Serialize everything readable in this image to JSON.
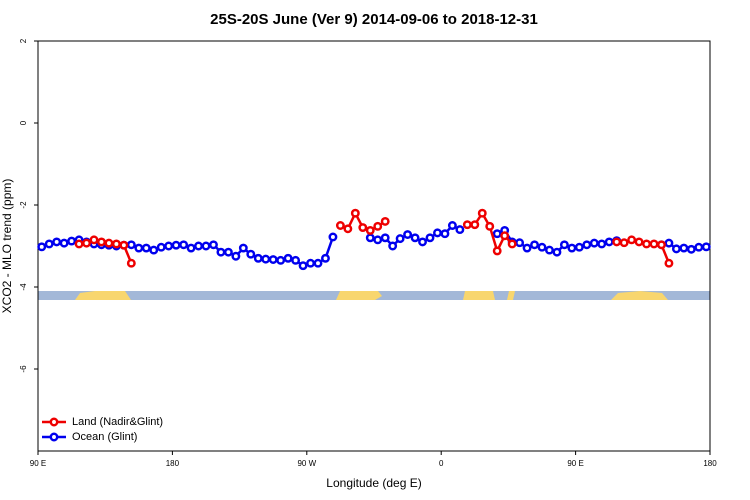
{
  "chart_data": {
    "type": "line",
    "title": "25S-20S June (Ver 9)   2014-09-06 to 2018-12-31",
    "xlabel": "Longitude (deg E)",
    "ylabel": "XCO2 - MLO trend (ppm)",
    "xlim": [
      90,
      540
    ],
    "xticks": [
      {
        "value": 90,
        "label": "90 E"
      },
      180,
      {
        "value": 270,
        "label": "90 W"
      },
      {
        "value": 360,
        "label": "0"
      },
      {
        "value": 450,
        "label": "90 E"
      },
      {
        "value": 540,
        "label": "180"
      }
    ],
    "ylim": [
      -8,
      2
    ],
    "yticks": [
      2,
      0,
      -2,
      -4,
      -6
    ],
    "legend": "bottom-left",
    "x": [
      92.5,
      97.5,
      102.5,
      107.5,
      112.5,
      117.5,
      122.5,
      127.5,
      132.5,
      137.5,
      142.5,
      147.5,
      152.5,
      157.5,
      162.5,
      167.5,
      172.5,
      177.5,
      182.5,
      187.5,
      192.5,
      197.5,
      202.5,
      207.5,
      212.5,
      217.5,
      222.5,
      227.5,
      232.5,
      237.5,
      242.5,
      247.5,
      252.5,
      257.5,
      262.5,
      267.5,
      272.5,
      277.5,
      282.5,
      287.5,
      292.5,
      297.5,
      302.5,
      307.5,
      312.5,
      317.5,
      322.5,
      327.5,
      332.5,
      337.5,
      342.5,
      347.5,
      352.5,
      357.5,
      362.5,
      367.5,
      372.5,
      377.5,
      382.5,
      387.5,
      392.5,
      397.5,
      402.5,
      407.5,
      412.5,
      417.5,
      422.5,
      427.5,
      432.5,
      437.5,
      442.5,
      447.5,
      452.5,
      457.5,
      462.5,
      467.5,
      472.5,
      477.5,
      482.5,
      487.5,
      492.5,
      497.5,
      502.5,
      507.5,
      512.5,
      517.5,
      522.5,
      527.5,
      532.5,
      537.5
    ],
    "series": [
      {
        "name": "Ocean (Glint)",
        "color": "#0000ee",
        "values": [
          -3.02,
          -2.95,
          -2.9,
          -2.93,
          -2.88,
          -2.85,
          -2.9,
          -2.95,
          -2.97,
          -2.98,
          -3.0,
          -2.98,
          -2.97,
          -3.05,
          -3.05,
          -3.1,
          -3.03,
          -3.0,
          -2.98,
          -2.97,
          -3.05,
          -3.0,
          -3.0,
          -2.97,
          -3.15,
          -3.15,
          -3.25,
          -3.05,
          -3.2,
          -3.3,
          -3.32,
          -3.33,
          -3.35,
          -3.3,
          -3.35,
          -3.48,
          -3.42,
          -3.42,
          -3.3,
          -2.78,
          null,
          null,
          null,
          null,
          -2.8,
          -2.85,
          -2.8,
          -3.0,
          -2.82,
          -2.72,
          -2.8,
          -2.9,
          -2.8,
          -2.68,
          -2.7,
          -2.5,
          -2.6,
          null,
          null,
          null,
          null,
          -2.7,
          -2.62,
          -2.9,
          -2.92,
          -3.05,
          -2.97,
          -3.03,
          -3.1,
          -3.15,
          -2.97,
          -3.05,
          -3.03,
          -2.97,
          -2.93,
          -2.95,
          -2.9,
          -2.87,
          null,
          null,
          null,
          null,
          null,
          -2.97,
          -2.93,
          -3.07,
          -3.05,
          -3.08,
          -3.03,
          -3.02
        ]
      },
      {
        "name": "Land (Nadir&Glint)",
        "color": "#ee0000",
        "values": [
          null,
          null,
          null,
          null,
          null,
          -2.95,
          -2.93,
          -2.85,
          -2.9,
          -2.93,
          -2.95,
          -2.98,
          -3.42,
          null,
          null,
          null,
          null,
          null,
          null,
          null,
          null,
          null,
          null,
          null,
          null,
          null,
          null,
          null,
          null,
          null,
          null,
          null,
          null,
          null,
          null,
          null,
          null,
          null,
          null,
          null,
          -2.5,
          -2.58,
          -2.2,
          -2.55,
          -2.62,
          -2.52,
          -2.4,
          null,
          null,
          null,
          null,
          null,
          null,
          null,
          null,
          null,
          null,
          -2.48,
          -2.48,
          -2.2,
          -2.52,
          -3.12,
          -2.75,
          -2.95,
          null,
          null,
          null,
          null,
          null,
          null,
          null,
          null,
          null,
          null,
          null,
          null,
          null,
          -2.9,
          -2.92,
          -2.85,
          -2.9,
          -2.95,
          -2.95,
          -2.97,
          -3.42,
          null,
          null,
          null,
          null,
          null
        ]
      }
    ]
  }
}
